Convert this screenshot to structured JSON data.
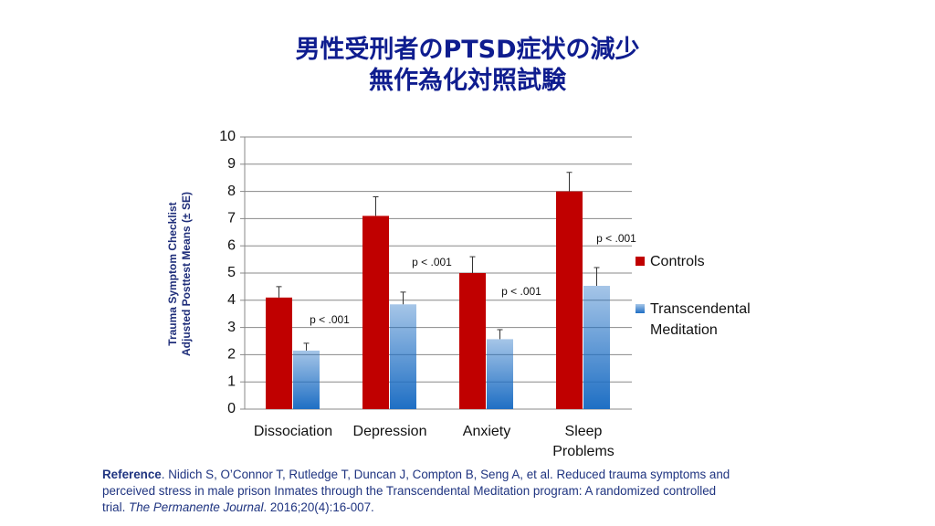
{
  "title": [
    "男性受刑者のPTSD症状の減少",
    "無作為化対照試験"
  ],
  "chart_data": {
    "type": "bar",
    "y_label": [
      "Trauma Symptom Checklist",
      "Adjusted Posttest Means (± SE)"
    ],
    "categories": [
      "Dissociation",
      "Depression",
      "Anxiety",
      "Sleep Problems"
    ],
    "series": [
      {
        "name": "Controls",
        "color": "#c00000",
        "values": [
          4.1,
          7.1,
          5.0,
          8.0
        ],
        "errors": [
          0.4,
          0.7,
          0.6,
          0.7
        ]
      },
      {
        "name": "Transcendental Meditation",
        "color": "#1f6fc4",
        "gradient": true,
        "values": [
          2.15,
          3.85,
          2.57,
          4.53
        ],
        "errors": [
          0.27,
          0.45,
          0.35,
          0.67
        ]
      }
    ],
    "annotations": [
      "p < .001",
      "p < .001",
      "p < .001",
      "p < .001"
    ],
    "ylim": [
      0,
      10
    ],
    "yticks": [
      0,
      1,
      2,
      3,
      4,
      5,
      6,
      7,
      8,
      9,
      10
    ],
    "grid": true,
    "legend": "right"
  },
  "reference": {
    "label": "Reference",
    "text_1": ". Nidich S, O’Connor T, Rutledge T, Duncan J, Compton B, Seng A, et al. Reduced trauma symptoms and perceived stress in male prison Inmates through the Transcendental Meditation program: A randomized controlled trial. ",
    "journal": "The Permanente Journal",
    "text_2": ". 2016;20(4):16-007."
  }
}
